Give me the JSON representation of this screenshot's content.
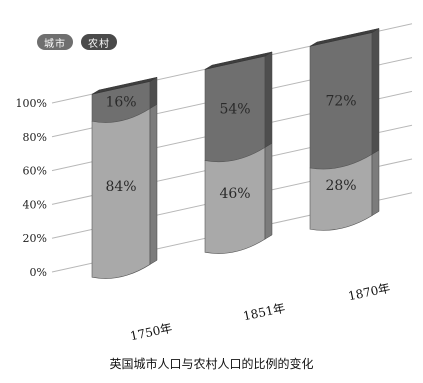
{
  "chart_data": {
    "type": "bar",
    "stacked": true,
    "title": "英国城市人口与农村人口的比例的变化",
    "categories": [
      "1750年",
      "1851年",
      "1870年"
    ],
    "series": [
      {
        "name": "城市",
        "values": [
          16,
          54,
          72
        ],
        "color": "#6f6f6f"
      },
      {
        "name": "农村",
        "values": [
          84,
          46,
          28
        ],
        "color": "#a9a9a9"
      }
    ],
    "data_labels": [
      {
        "category": "1750年",
        "top": "16%",
        "bottom": "84%"
      },
      {
        "category": "1851年",
        "top": "54%",
        "bottom": "46%"
      },
      {
        "category": "1870年",
        "top": "72%",
        "bottom": "28%"
      }
    ],
    "y_ticks": [
      "0%",
      "20%",
      "40%",
      "60%",
      "80%",
      "100%"
    ],
    "ylim": [
      0,
      100
    ],
    "grid": true,
    "legend": "top-left"
  }
}
